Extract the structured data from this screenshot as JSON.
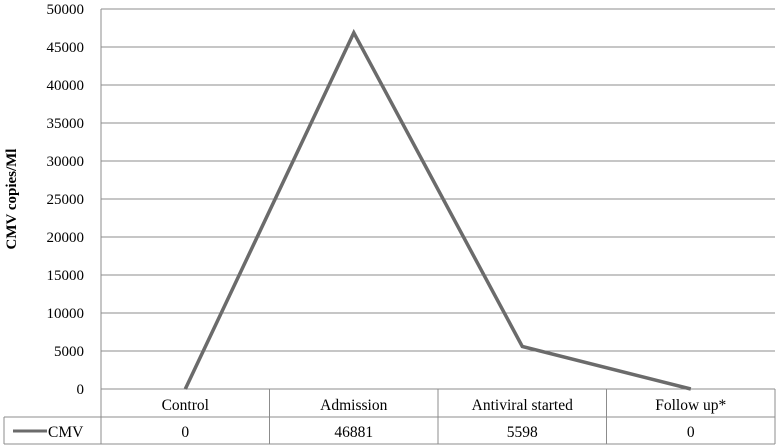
{
  "chart_data": {
    "type": "line",
    "ylabel": "CMV copies/Ml",
    "ylim": [
      0,
      50000
    ],
    "yticks": [
      0,
      5000,
      10000,
      15000,
      20000,
      25000,
      30000,
      35000,
      40000,
      45000,
      50000
    ],
    "ytick_labels": [
      "0",
      "5000",
      "10000",
      "15000",
      "20000",
      "25000",
      "30000",
      "35000",
      "40000",
      "45000",
      "50000"
    ],
    "grid": true,
    "categories": [
      "Control",
      "Admission",
      "Antiviral started",
      "Follow up*"
    ],
    "series": [
      {
        "name": "CMV",
        "values": [
          0,
          46881,
          5598,
          0
        ],
        "value_labels": [
          "0",
          "46881",
          "5598",
          "0"
        ]
      }
    ],
    "data_table": true,
    "colors": {
      "line": "#6b6b6b",
      "grid": "#8c8c8c",
      "table": "#8c8c8c"
    }
  }
}
